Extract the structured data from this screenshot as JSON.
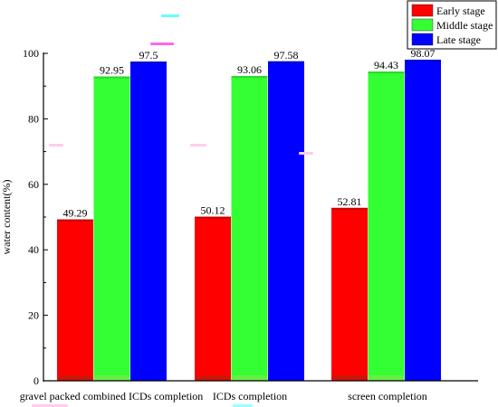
{
  "chart_data": {
    "type": "bar",
    "categories": [
      "gravel packed combined ICDs completion",
      "ICDs completion",
      "screen completion"
    ],
    "series": [
      {
        "name": "Early stage",
        "color": "#ff0000",
        "values": [
          49.29,
          50.12,
          52.81
        ],
        "labels": [
          "49.29",
          "50.12",
          "52.81"
        ]
      },
      {
        "name": "Middle stage",
        "color": "#33ff33",
        "values": [
          92.95,
          93.06,
          94.43
        ],
        "labels": [
          "92.95",
          "93.06",
          "94.43"
        ]
      },
      {
        "name": "Late stage",
        "color": "#0000ff",
        "values": [
          97.5,
          97.58,
          98.07
        ],
        "labels": [
          "97.5",
          "97.58",
          "98.07"
        ]
      }
    ],
    "ylabel": "water content(%)",
    "xlabel": "",
    "ylim": [
      0,
      100
    ],
    "yticks": [
      "0",
      "20",
      "40",
      "60",
      "80",
      "100"
    ],
    "legend_position": "top-right",
    "grid": false
  }
}
